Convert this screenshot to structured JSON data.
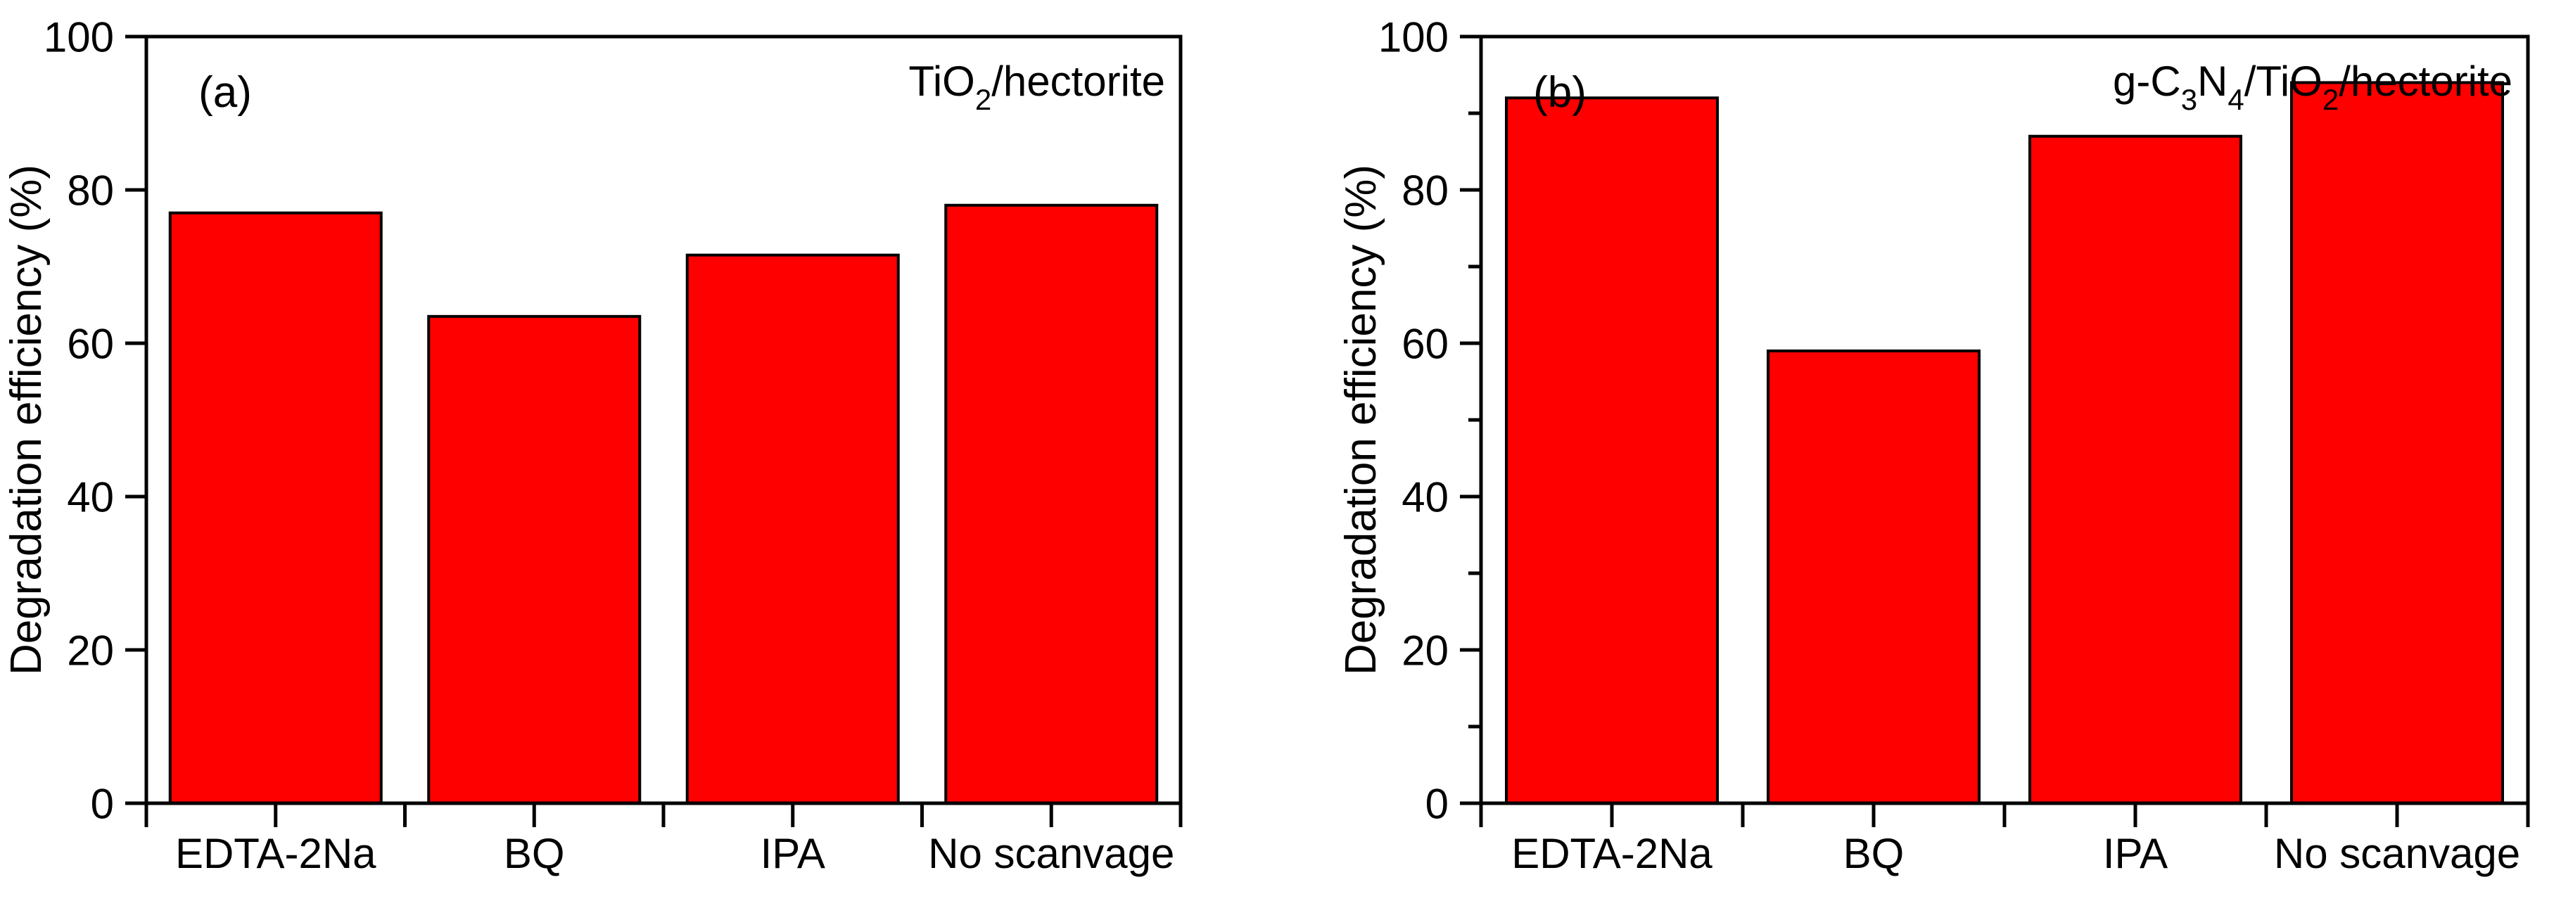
{
  "figure": {
    "background": "#FFFFFF",
    "panel_labels": [
      "(a)",
      "(b)"
    ]
  },
  "chart_data": [
    {
      "type": "bar",
      "panel_label": "(a)",
      "title": "TiO2/hectorite",
      "title_segments": [
        {
          "text": "TiO"
        },
        {
          "text": "2",
          "sub": true
        },
        {
          "text": "/hectorite"
        }
      ],
      "categories": [
        "EDTA-2Na",
        "BQ",
        "IPA",
        "No scanvage"
      ],
      "values": [
        77,
        63.5,
        71.5,
        78
      ],
      "xlabel": "",
      "ylabel": "Degradation efficiency (%)",
      "ylim": [
        0,
        100
      ],
      "y_major_step": 20,
      "y_minor_step": null,
      "y_tick_labels": [
        "0",
        "20",
        "40",
        "60",
        "80",
        "100"
      ],
      "grid": false,
      "legend": null,
      "bar_color": "#FF0000",
      "bar_edge_color": "#000000",
      "axis_color": "#000000"
    },
    {
      "type": "bar",
      "panel_label": "(b)",
      "title": "g-C3N4/TiO2/hectorite",
      "title_segments": [
        {
          "text": "g-C"
        },
        {
          "text": "3",
          "sub": true
        },
        {
          "text": "N"
        },
        {
          "text": "4",
          "sub": true
        },
        {
          "text": "/TiO"
        },
        {
          "text": "2",
          "sub": true
        },
        {
          "text": "/hectorite"
        }
      ],
      "categories": [
        "EDTA-2Na",
        "BQ",
        "IPA",
        "No scanvage"
      ],
      "values": [
        92,
        59,
        87,
        94
      ],
      "xlabel": "",
      "ylabel": "Degradation efficiency (%)",
      "ylim": [
        0,
        100
      ],
      "y_major_step": 20,
      "y_minor_step": 10,
      "y_tick_labels": [
        "0",
        "20",
        "40",
        "60",
        "80",
        "100"
      ],
      "grid": false,
      "legend": null,
      "bar_color": "#FF0000",
      "bar_edge_color": "#000000",
      "axis_color": "#000000"
    }
  ]
}
